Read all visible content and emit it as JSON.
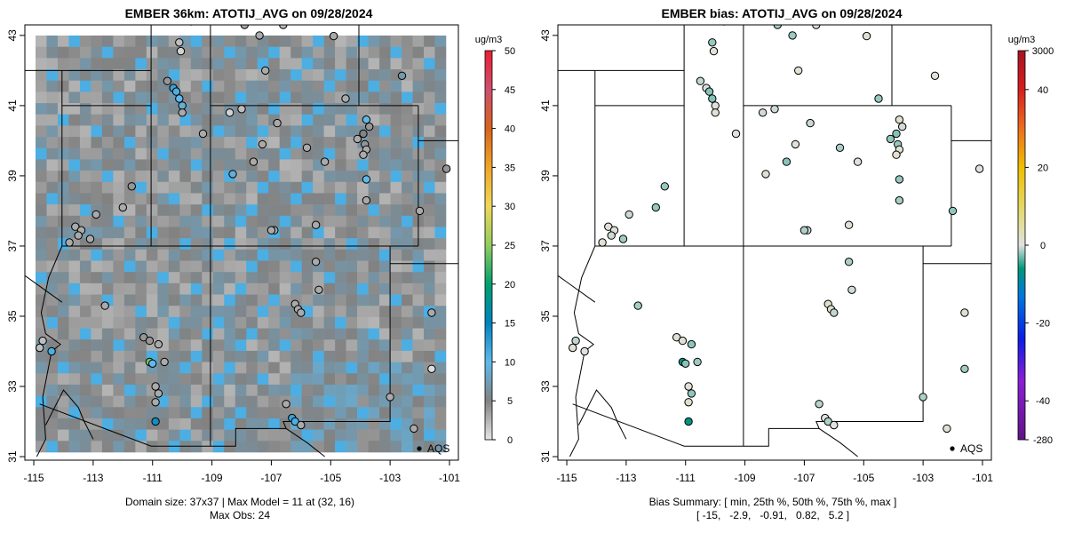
{
  "chart_data": [
    {
      "type": "map",
      "title": "EMBER 36km: ATOTIJ_AVG on 09/28/2024",
      "xlim": [
        -115.3,
        -100.7
      ],
      "ylim": [
        30.9,
        43.3
      ],
      "xticks": [
        "-115",
        "-113",
        "-111",
        "-109",
        "-107",
        "-105",
        "-103",
        "-101"
      ],
      "yticks": [
        "31",
        "33",
        "35",
        "37",
        "39",
        "41",
        "43"
      ],
      "legend_point_label": "AQS",
      "colorbar": {
        "unit": "ug/m3",
        "ticks": [
          "0",
          "5",
          "10",
          "15",
          "20",
          "25",
          "30",
          "35",
          "40",
          "45",
          "50"
        ],
        "range": [
          0,
          50
        ]
      },
      "caption": [
        "Domain size: 37x37 | Max Model = 11 at (32, 16)",
        "Max Obs: 24"
      ],
      "stations": [
        {
          "lon": -109.7,
          "lat": 43.4,
          "value": 3
        },
        {
          "lon": -107.9,
          "lat": 43.3,
          "value": 3
        },
        {
          "lon": -107.4,
          "lat": 43.0,
          "value": 3
        },
        {
          "lon": -106.6,
          "lat": 43.3,
          "value": 2
        },
        {
          "lon": -104.9,
          "lat": 42.98,
          "value": 3
        },
        {
          "lon": -110.1,
          "lat": 42.8,
          "value": 2
        },
        {
          "lon": -110.05,
          "lat": 42.55,
          "value": 1
        },
        {
          "lon": -107.2,
          "lat": 42.0,
          "value": 3
        },
        {
          "lon": -102.6,
          "lat": 41.85,
          "value": 7
        },
        {
          "lon": -110.5,
          "lat": 41.7,
          "value": 4
        },
        {
          "lon": -110.3,
          "lat": 41.5,
          "value": 12
        },
        {
          "lon": -110.2,
          "lat": 41.4,
          "value": 11
        },
        {
          "lon": -110.1,
          "lat": 41.2,
          "value": 10
        },
        {
          "lon": -110.0,
          "lat": 41.0,
          "value": 9
        },
        {
          "lon": -110.0,
          "lat": 40.8,
          "value": 3
        },
        {
          "lon": -108.4,
          "lat": 40.8,
          "value": 1
        },
        {
          "lon": -108.0,
          "lat": 40.9,
          "value": 2
        },
        {
          "lon": -104.5,
          "lat": 41.2,
          "value": 3
        },
        {
          "lon": -103.8,
          "lat": 40.6,
          "value": 10
        },
        {
          "lon": -103.7,
          "lat": 40.4,
          "value": 4
        },
        {
          "lon": -103.9,
          "lat": 40.2,
          "value": 5
        },
        {
          "lon": -104.1,
          "lat": 40.05,
          "value": 3
        },
        {
          "lon": -103.85,
          "lat": 39.9,
          "value": 4
        },
        {
          "lon": -103.8,
          "lat": 39.75,
          "value": 3
        },
        {
          "lon": -103.9,
          "lat": 39.6,
          "value": 3
        },
        {
          "lon": -106.8,
          "lat": 40.5,
          "value": 3
        },
        {
          "lon": -107.3,
          "lat": 39.9,
          "value": 3
        },
        {
          "lon": -105.8,
          "lat": 39.8,
          "value": 3
        },
        {
          "lon": -105.2,
          "lat": 39.4,
          "value": 3
        },
        {
          "lon": -107.6,
          "lat": 39.4,
          "value": 3
        },
        {
          "lon": -109.3,
          "lat": 40.2,
          "value": 3
        },
        {
          "lon": -108.3,
          "lat": 39.05,
          "value": 9
        },
        {
          "lon": -103.8,
          "lat": 38.9,
          "value": 10
        },
        {
          "lon": -103.8,
          "lat": 38.3,
          "value": 3
        },
        {
          "lon": -101.1,
          "lat": 39.2,
          "value": 4
        },
        {
          "lon": -102.0,
          "lat": 38.0,
          "value": 3
        },
        {
          "lon": -111.7,
          "lat": 38.7,
          "value": 4
        },
        {
          "lon": -112.0,
          "lat": 38.1,
          "value": 3
        },
        {
          "lon": -112.9,
          "lat": 37.9,
          "value": 3
        },
        {
          "lon": -113.6,
          "lat": 37.55,
          "value": 3
        },
        {
          "lon": -113.4,
          "lat": 37.45,
          "value": 3
        },
        {
          "lon": -113.5,
          "lat": 37.3,
          "value": 3
        },
        {
          "lon": -113.1,
          "lat": 37.2,
          "value": 3
        },
        {
          "lon": -113.8,
          "lat": 37.1,
          "value": 3
        },
        {
          "lon": -105.5,
          "lat": 37.6,
          "value": 3
        },
        {
          "lon": -106.9,
          "lat": 37.45,
          "value": 3
        },
        {
          "lon": -107.0,
          "lat": 37.45,
          "value": 3
        },
        {
          "lon": -105.5,
          "lat": 36.55,
          "value": 3
        },
        {
          "lon": -105.4,
          "lat": 35.75,
          "value": 3
        },
        {
          "lon": -106.2,
          "lat": 35.35,
          "value": 3
        },
        {
          "lon": -106.1,
          "lat": 35.2,
          "value": 3
        },
        {
          "lon": -106.0,
          "lat": 35.1,
          "value": 3
        },
        {
          "lon": -112.6,
          "lat": 35.3,
          "value": 3
        },
        {
          "lon": -101.6,
          "lat": 35.1,
          "value": 3
        },
        {
          "lon": -111.3,
          "lat": 34.4,
          "value": 4
        },
        {
          "lon": -111.1,
          "lat": 34.3,
          "value": 4
        },
        {
          "lon": -110.8,
          "lat": 34.2,
          "value": 3
        },
        {
          "lon": -111.1,
          "lat": 33.7,
          "value": 24
        },
        {
          "lon": -111.0,
          "lat": 33.65,
          "value": 10
        },
        {
          "lon": -110.6,
          "lat": 33.7,
          "value": 3
        },
        {
          "lon": -114.7,
          "lat": 34.3,
          "value": 2
        },
        {
          "lon": -114.8,
          "lat": 34.1,
          "value": 2
        },
        {
          "lon": -114.4,
          "lat": 34.0,
          "value": 11
        },
        {
          "lon": -110.9,
          "lat": 33.0,
          "value": 3
        },
        {
          "lon": -110.8,
          "lat": 32.8,
          "value": 3
        },
        {
          "lon": -110.9,
          "lat": 32.55,
          "value": 3
        },
        {
          "lon": -110.9,
          "lat": 32.0,
          "value": 14
        },
        {
          "lon": -106.5,
          "lat": 32.5,
          "value": 3
        },
        {
          "lon": -106.3,
          "lat": 32.1,
          "value": 12
        },
        {
          "lon": -106.2,
          "lat": 32.0,
          "value": 11
        },
        {
          "lon": -106.0,
          "lat": 31.9,
          "value": 3
        },
        {
          "lon": -103.0,
          "lat": 32.7,
          "value": 3
        },
        {
          "lon": -102.2,
          "lat": 31.8,
          "value": 3
        },
        {
          "lon": -101.6,
          "lat": 33.5,
          "value": 0.5
        }
      ]
    },
    {
      "type": "map",
      "title": "EMBER bias: ATOTIJ_AVG on 09/28/2024",
      "xlim": [
        -115.3,
        -100.7
      ],
      "ylim": [
        30.9,
        43.3
      ],
      "xticks": [
        "-115",
        "-113",
        "-111",
        "-109",
        "-107",
        "-105",
        "-103",
        "-101"
      ],
      "yticks": [
        "31",
        "33",
        "35",
        "37",
        "39",
        "41",
        "43"
      ],
      "legend_point_label": "AQS",
      "colorbar": {
        "unit": "ug/m3",
        "ticks": [
          "3000",
          "40",
          "20",
          "0",
          "-20",
          "-40",
          "-280"
        ],
        "range": [
          -280,
          3000
        ]
      },
      "caption": [
        "Bias Summary: [ min, 25th %, 50th %, 75th %, max ]",
        "[ -15,   -2.9,   -0.91,   0.82,   5.2 ]"
      ],
      "bias_summary": {
        "min": -15,
        "p25": -2.9,
        "p50": -0.91,
        "p75": 0.82,
        "max": 5.2
      }
    }
  ]
}
